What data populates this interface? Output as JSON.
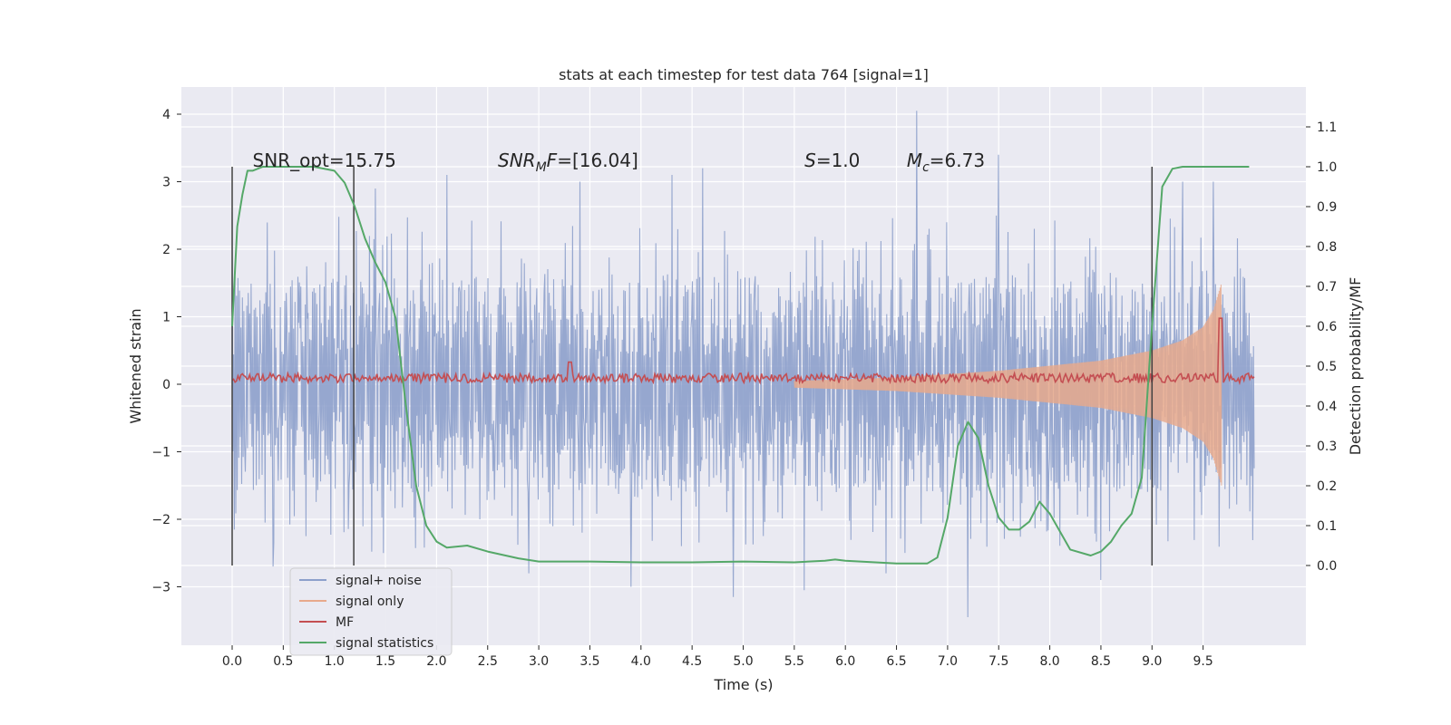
{
  "chart_data": {
    "type": "line",
    "title": "stats at each timestep for test data 764 [signal=1]",
    "xlabel": "Time (s)",
    "ylabel": "Whitened strain",
    "ylabel_right": "Detection probability/MF",
    "xlim": [
      -0.5,
      10.5
    ],
    "ylim": [
      -3.85,
      4.4
    ],
    "ylim_right": [
      -0.2,
      1.2
    ],
    "x_ticks": [
      0.0,
      0.5,
      1.0,
      1.5,
      2.0,
      2.5,
      3.0,
      3.5,
      4.0,
      4.5,
      5.0,
      5.5,
      6.0,
      6.5,
      7.0,
      7.5,
      8.0,
      8.5,
      9.0,
      9.5
    ],
    "x_tick_labels": [
      "0.0",
      "0.5",
      "1.0",
      "1.5",
      "2.0",
      "2.5",
      "3.0",
      "3.5",
      "4.0",
      "4.5",
      "5.0",
      "5.5",
      "6.0",
      "6.5",
      "7.0",
      "7.5",
      "8.0",
      "8.5",
      "9.0",
      "9.5"
    ],
    "y_ticks": [
      -3,
      -2,
      -1,
      0,
      1,
      2,
      3,
      4
    ],
    "y_tick_labels": [
      "−3",
      "−2",
      "−1",
      "0",
      "1",
      "2",
      "3",
      "4"
    ],
    "y_ticks_right": [
      0.0,
      0.1,
      0.2,
      0.3,
      0.4,
      0.5,
      0.6,
      0.7,
      0.8,
      0.9,
      1.0,
      1.1
    ],
    "y_tick_labels_right": [
      "0.0",
      "0.1",
      "0.2",
      "0.3",
      "0.4",
      "0.5",
      "0.6",
      "0.7",
      "0.8",
      "0.9",
      "1.0",
      "1.1"
    ],
    "grid": true,
    "legend_position": "bottom-left",
    "vertical_lines_x": [
      0.0,
      1.19,
      9.0
    ],
    "vertical_lines_range": [
      -0.0,
      1.0
    ],
    "annotations": [
      {
        "text": "SNR_opt=15.75",
        "x": 0.2
      },
      {
        "text": "SNR_MF=[16.04]",
        "x": 2.6
      },
      {
        "text": "S=1.0",
        "x": 5.6
      },
      {
        "text": "M_c=6.73",
        "x": 6.6
      }
    ],
    "series": [
      {
        "name": "signal+ noise",
        "color": "#8da0cb",
        "axis": "left",
        "style": "noise",
        "x_range": [
          0.0,
          10.0
        ],
        "typical_min": -1.7,
        "typical_max": 1.6,
        "peaks": [
          {
            "x": 0.0,
            "y": 2.55
          },
          {
            "x": 1.4,
            "y": 2.9
          },
          {
            "x": 2.1,
            "y": 3.1
          },
          {
            "x": 3.4,
            "y": 3.0
          },
          {
            "x": 4.3,
            "y": 3.1
          },
          {
            "x": 4.6,
            "y": 3.2
          },
          {
            "x": 6.7,
            "y": 4.05
          },
          {
            "x": 7.5,
            "y": 3.4
          },
          {
            "x": 9.3,
            "y": 3.0
          },
          {
            "x": 9.6,
            "y": 3.0
          },
          {
            "x": 3.9,
            "y": -3.0
          },
          {
            "x": 4.9,
            "y": -3.15
          },
          {
            "x": 5.6,
            "y": -3.05
          },
          {
            "x": 7.2,
            "y": -3.45
          },
          {
            "x": 6.4,
            "y": -2.8
          },
          {
            "x": 2.9,
            "y": -2.8
          },
          {
            "x": 0.4,
            "y": -2.7
          },
          {
            "x": 8.5,
            "y": -2.9
          }
        ]
      },
      {
        "name": "signal only",
        "color": "#e8a98c",
        "axis": "left",
        "style": "chirp",
        "x_range": [
          5.5,
          9.68
        ],
        "amplitude_points": [
          [
            5.5,
            0.05
          ],
          [
            6.5,
            0.1
          ],
          [
            7.5,
            0.2
          ],
          [
            8.5,
            0.35
          ],
          [
            9.0,
            0.5
          ],
          [
            9.3,
            0.65
          ],
          [
            9.5,
            0.85
          ],
          [
            9.6,
            1.1
          ],
          [
            9.68,
            1.5
          ]
        ]
      },
      {
        "name": "MF",
        "color": "#c44e52",
        "axis": "right",
        "style": "mf",
        "baseline": 0.47,
        "jitter": 0.012,
        "spikes": [
          {
            "x": 3.3,
            "y": 0.51
          },
          {
            "x": 9.67,
            "y": 0.62
          }
        ]
      },
      {
        "name": "signal statistics",
        "color": "#55a868",
        "axis": "right",
        "x": [
          0.0,
          0.05,
          0.1,
          0.15,
          0.2,
          0.3,
          0.5,
          0.8,
          1.0,
          1.1,
          1.2,
          1.3,
          1.4,
          1.5,
          1.6,
          1.7,
          1.8,
          1.9,
          2.0,
          2.1,
          2.3,
          2.5,
          2.8,
          3.0,
          3.5,
          4.0,
          4.5,
          5.0,
          5.5,
          5.8,
          5.9,
          6.0,
          6.5,
          6.8,
          6.9,
          7.0,
          7.1,
          7.2,
          7.3,
          7.4,
          7.5,
          7.6,
          7.7,
          7.8,
          7.9,
          8.0,
          8.2,
          8.4,
          8.5,
          8.6,
          8.7,
          8.8,
          8.9,
          9.0,
          9.1,
          9.2,
          9.3,
          9.5,
          9.95
        ],
        "y": [
          0.6,
          0.85,
          0.93,
          0.99,
          0.99,
          1.0,
          1.0,
          1.0,
          0.99,
          0.96,
          0.9,
          0.82,
          0.76,
          0.71,
          0.62,
          0.4,
          0.2,
          0.1,
          0.06,
          0.045,
          0.05,
          0.035,
          0.018,
          0.01,
          0.01,
          0.008,
          0.008,
          0.01,
          0.008,
          0.012,
          0.015,
          0.012,
          0.005,
          0.005,
          0.02,
          0.12,
          0.3,
          0.36,
          0.32,
          0.2,
          0.12,
          0.09,
          0.09,
          0.11,
          0.16,
          0.13,
          0.04,
          0.025,
          0.035,
          0.06,
          0.1,
          0.13,
          0.22,
          0.6,
          0.95,
          0.995,
          1.0,
          1.0,
          1.0
        ]
      }
    ]
  }
}
